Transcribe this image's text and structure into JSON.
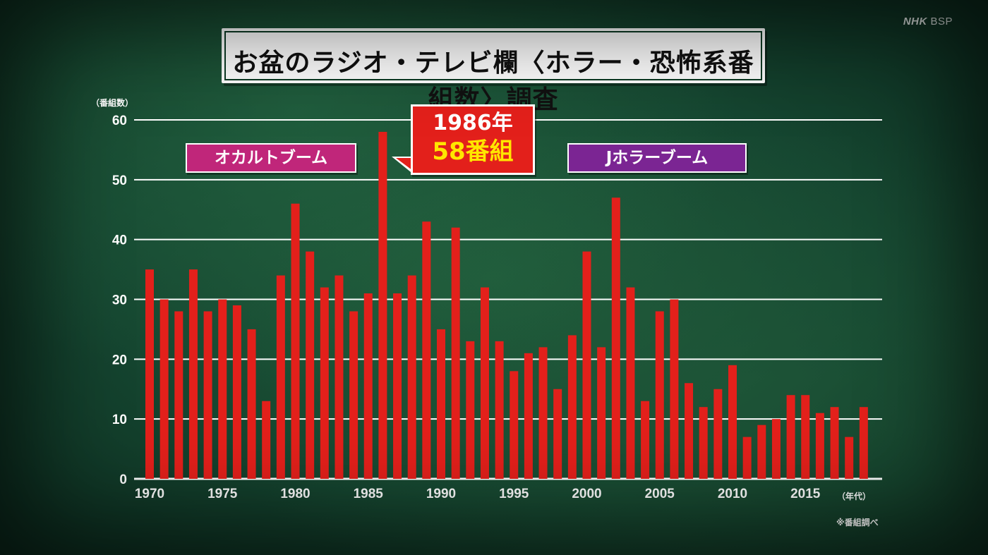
{
  "brand": {
    "name": "NHK",
    "channel": "BSP"
  },
  "title": "お盆のラジオ・テレビ欄〈ホラー・恐怖系番組数〉調査",
  "annotations": {
    "occult_boom": "オカルトブーム",
    "j_horror_boom": "Jホラーブーム",
    "callout_year": "1986年",
    "callout_count": "58番組"
  },
  "source_note": "※番組調べ",
  "colors": {
    "bar": "#e3201b",
    "background": "#1a4f35",
    "occult_label": "#c0267a",
    "j_horror_label": "#7b2593",
    "callout_highlight": "#ffe600"
  },
  "chart_data": {
    "type": "bar",
    "title": "お盆のラジオ・テレビ欄〈ホラー・恐怖系番組数〉調査",
    "ylabel": "（番組数）",
    "xlabel": "（年代）",
    "ylim": [
      0,
      60
    ],
    "y_ticks": [
      0,
      10,
      20,
      30,
      40,
      50,
      60
    ],
    "x_tick_labels": [
      "1970",
      "1975",
      "1980",
      "1985",
      "1990",
      "1995",
      "2000",
      "2005",
      "2010",
      "2015"
    ],
    "grid": true,
    "categories": [
      1970,
      1971,
      1972,
      1973,
      1974,
      1975,
      1976,
      1977,
      1978,
      1979,
      1980,
      1981,
      1982,
      1983,
      1984,
      1985,
      1986,
      1987,
      1988,
      1989,
      1990,
      1991,
      1992,
      1993,
      1994,
      1995,
      1996,
      1997,
      1998,
      1999,
      2000,
      2001,
      2002,
      2003,
      2004,
      2005,
      2006,
      2007,
      2008,
      2009,
      2010,
      2011,
      2012,
      2013,
      2014,
      2015,
      2016,
      2017,
      2018,
      2019
    ],
    "values": [
      35,
      30,
      28,
      35,
      28,
      30,
      29,
      25,
      13,
      34,
      46,
      38,
      32,
      34,
      28,
      31,
      58,
      31,
      34,
      43,
      25,
      42,
      23,
      32,
      23,
      18,
      21,
      22,
      15,
      24,
      38,
      22,
      47,
      32,
      13,
      28,
      30,
      16,
      12,
      15,
      19,
      7,
      9,
      10,
      14,
      14,
      11,
      12,
      7,
      12
    ]
  }
}
